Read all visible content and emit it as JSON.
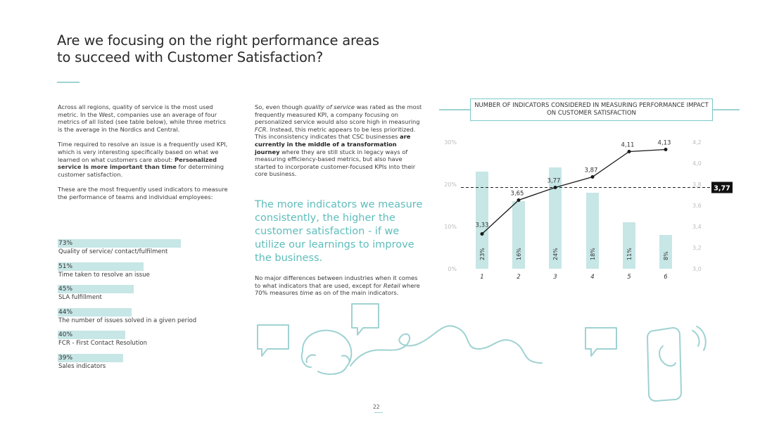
{
  "title": "Are we focusing on the right performance areas to succeed with Customer Satisfaction?",
  "col1": {
    "p1": "Across all regions, quality of service is the most used metric. In the West, companies use an average of four metrics of all listed (see table below), while three metrics is the average in the Nordics and Central.",
    "p2_a": "Time required to resolve an issue is a frequently used KPI, which is very interesting specifically based on what we learned on what customers care about: ",
    "p2_b": "Personalized service is more important than time",
    "p2_c": " for determining customer satisfaction.",
    "p3": "These are the most frequently used indicators to measure the performance of teams and individual employees:"
  },
  "kpis": [
    {
      "pct": "73%",
      "label": "Quality of service/ contact/fulfilment",
      "value": 73
    },
    {
      "pct": "51%",
      "label": "Time taken to resolve an issue",
      "value": 51
    },
    {
      "pct": "45%",
      "label": "SLA fulfillment",
      "value": 45
    },
    {
      "pct": "44%",
      "label": "The number of issues solved in a given period",
      "value": 44
    },
    {
      "pct": "40%",
      "label": "FCR - First Contact Resolution",
      "value": 40
    },
    {
      "pct": "39%",
      "label": "Sales indicators",
      "value": 39
    }
  ],
  "col2": {
    "a": "So, even though ",
    "b": "quality of service",
    "c": " was rated as the most frequently measured KPI, a company focusing on personalized service would also score high in measuring ",
    "d": "FCR",
    "e": ". Instead, this metric appears to be less prioritized. This inconsistency indicates that CSC businesses ",
    "f": "are currently in the middle of a transformation journey",
    "g": " where they are still stuck in legacy ways of measuring efficiency-based metrics, but also have started to incorporate customer-focused KPIs into their core business."
  },
  "quote": "The more indicators we measure consistently, the higher the customer satisfaction - if we utilize our learnings to improve the business.",
  "col2b": {
    "a": "No major differences between industries when it comes to what indicators that are used, except for ",
    "b": "Retail",
    "c": " where 70% measures ",
    "d": "time",
    "e": " as on of the main indicators."
  },
  "chart_title": "NUMBER OF INDICATORS CONSIDERED IN MEASURING PERFORMANCE IMPACT ON CUSTOMER SATISFACTION",
  "chart_data": {
    "type": "bar+line",
    "title": "NUMBER OF INDICATORS CONSIDERED IN MEASURING PERFORMANCE IMPACT ON CUSTOMER SATISFACTION",
    "categories": [
      "1",
      "2",
      "3",
      "4",
      "5",
      "6"
    ],
    "bars": {
      "values": [
        23,
        16,
        24,
        18,
        11,
        8
      ],
      "labels": [
        "23%",
        "16%",
        "24%",
        "18%",
        "11%",
        "8%"
      ],
      "color": "#c7e6e6"
    },
    "line": {
      "values": [
        3.33,
        3.65,
        3.77,
        3.87,
        4.11,
        4.13
      ],
      "labels": [
        "3,33",
        "3,65",
        "3,77",
        "3,87",
        "4,11",
        "4,13"
      ],
      "color": "#1a1a1a"
    },
    "y_left": {
      "ticks": [
        "0%",
        "10%",
        "20%",
        "30%"
      ],
      "range": [
        0,
        30
      ]
    },
    "y_right": {
      "ticks": [
        "3,0",
        "3,2",
        "3,4",
        "3,6",
        "3,8",
        "4,0",
        "4,2"
      ],
      "range": [
        3.0,
        4.2
      ]
    },
    "reference_line": {
      "value": 3.77,
      "label": "3,77"
    },
    "grid": false
  },
  "page_number": "22",
  "colors": {
    "accent": "#5dbdbb",
    "bar": "#c7e6e6",
    "line": "#1a1a1a"
  }
}
